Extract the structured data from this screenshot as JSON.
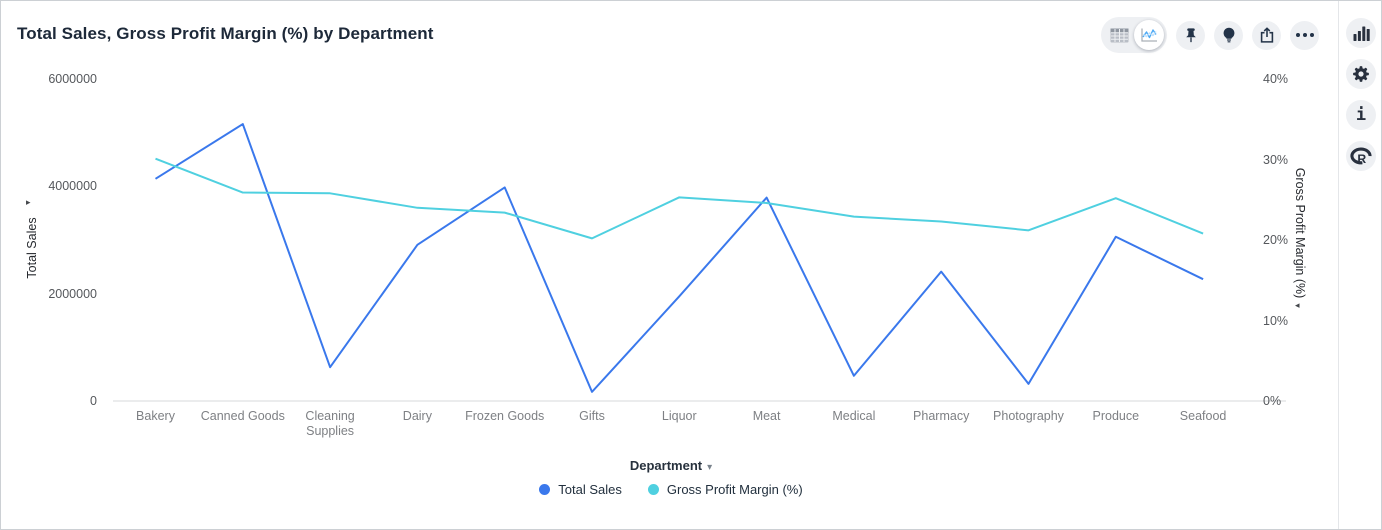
{
  "window": {
    "title": "Total Sales, Gross Profit Margin (%) by Department"
  },
  "toolbar": {
    "view_toggle": [
      {
        "name": "table-view",
        "icon": "table-icon",
        "selected": false
      },
      {
        "name": "chart-view",
        "icon": "line-chart-icon",
        "selected": true
      }
    ],
    "buttons": [
      {
        "name": "pin",
        "icon": "pin-icon"
      },
      {
        "name": "insights",
        "icon": "lightbulb-icon"
      },
      {
        "name": "export",
        "icon": "share-icon"
      },
      {
        "name": "more-options",
        "icon": "ellipsis-icon"
      }
    ]
  },
  "right_rail": {
    "buttons": [
      {
        "name": "chart-type",
        "icon": "bar-chart-icon"
      },
      {
        "name": "settings",
        "icon": "gear-icon"
      },
      {
        "name": "info",
        "icon": "info-icon",
        "glyph": "i"
      },
      {
        "name": "r-script",
        "icon": "r-logo-icon",
        "glyph": "R"
      }
    ]
  },
  "colors": {
    "total_sales": "#3a78ec",
    "gross_profit_margin": "#4fd0e0",
    "icon": "#233348",
    "axis_line": "#d7d9db"
  },
  "chart_data": {
    "type": "line",
    "title": "Total Sales, Gross Profit Margin (%) by Department",
    "grid": false,
    "legend_position": "bottom",
    "x_label": "Department",
    "categories": [
      "Bakery",
      "Canned Goods",
      "Cleaning Supplies",
      "Dairy",
      "Frozen Goods",
      "Gifts",
      "Liquor",
      "Meat",
      "Medical",
      "Pharmacy",
      "Photography",
      "Produce",
      "Seafood"
    ],
    "series": [
      {
        "name": "Total Sales",
        "axis": "left",
        "color": "#3a78ec",
        "values": [
          4140000,
          5160000,
          630000,
          2910000,
          3980000,
          170000,
          1950000,
          3790000,
          470000,
          2410000,
          320000,
          3060000,
          2270000
        ]
      },
      {
        "name": "Gross Profit Margin (%)",
        "axis": "right",
        "color": "#4fd0e0",
        "values": [
          30.1,
          25.9,
          25.8,
          24.0,
          23.4,
          20.2,
          25.3,
          24.6,
          22.9,
          22.3,
          21.2,
          25.2,
          20.8
        ]
      }
    ],
    "y_left": {
      "label": "Total Sales",
      "min": 0,
      "max": 6000000,
      "ticks": [
        {
          "label": "6000000",
          "value": 6000000
        },
        {
          "label": "4000000",
          "value": 4000000
        },
        {
          "label": "2000000",
          "value": 2000000
        },
        {
          "label": "0",
          "value": 0
        }
      ]
    },
    "y_right": {
      "label": "Gross Profit Margin (%)",
      "min": 0,
      "max": 40,
      "ticks": [
        {
          "label": "40%",
          "value": 40
        },
        {
          "label": "30%",
          "value": 30
        },
        {
          "label": "20%",
          "value": 20
        },
        {
          "label": "10%",
          "value": 10
        },
        {
          "label": "0%",
          "value": 0
        }
      ]
    },
    "axis_arrows": {
      "left": "▸",
      "right": "◂",
      "x_caret": "▾"
    }
  }
}
